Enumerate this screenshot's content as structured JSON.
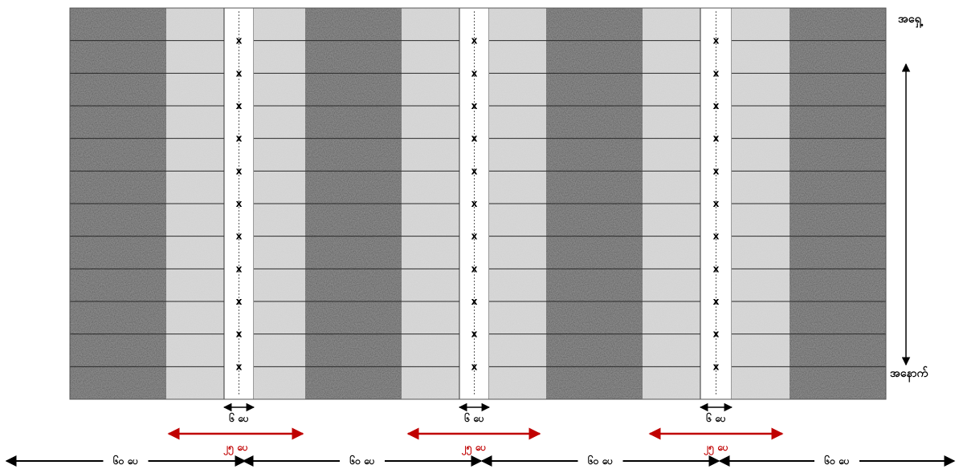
{
  "direction": {
    "north_label": "အရှေ့",
    "south_label": "အနောက်"
  },
  "plot": {
    "strip_types": [
      "dark",
      "light",
      "path",
      "light",
      "dark",
      "light",
      "path",
      "light",
      "dark",
      "light",
      "path",
      "light",
      "dark"
    ],
    "row_count": 12,
    "row_marker": "x"
  },
  "dimensions": {
    "path_width_label": "၆ ပေ",
    "bed_width_label": "၂၅ ပေ",
    "outer_width_label": "၆၀ ပေ"
  },
  "colors": {
    "dark_bed": "#8f8f8f",
    "light_bed": "#dedede",
    "path": "#ffffff",
    "red_arrow": "#c00000",
    "black_arrow": "#000000"
  }
}
